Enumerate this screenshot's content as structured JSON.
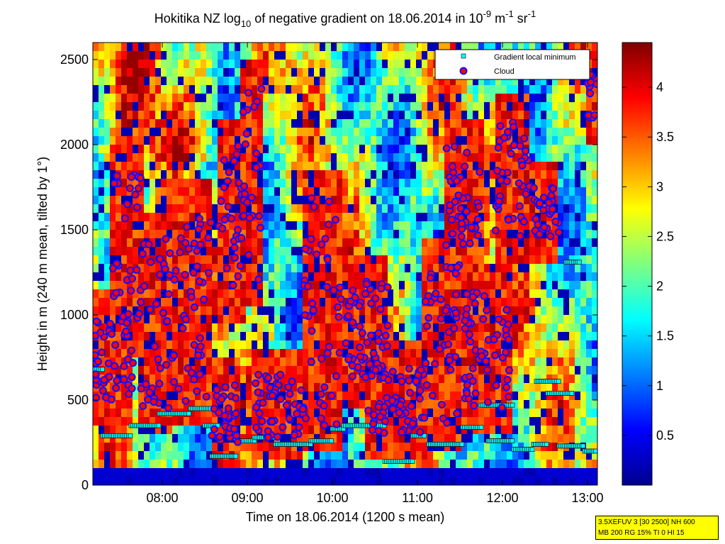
{
  "chart_data": {
    "type": "heatmap",
    "title": {
      "prefix": "Hokitika NZ log",
      "prefix_sub": "10",
      "middle": " of negative gradient on 18.06.2014 in 10",
      "unit_exp1": "-9",
      "unit_mid": " m",
      "unit_exp2": "-1",
      "unit_tail": " sr",
      "unit_exp3": "-1"
    },
    "xlabel": "Time on 18.06.2014 (1200 s mean)",
    "ylabel": "Height in m (240 m mean, tilted by 1°)",
    "xlim": [
      "07:11",
      "13:07"
    ],
    "ylim": [
      0,
      2600
    ],
    "x_ticks": [
      "08:00",
      "09:00",
      "10:00",
      "11:00",
      "12:00",
      "13:00"
    ],
    "y_ticks": [
      0,
      500,
      1000,
      1500,
      2000,
      2500
    ],
    "colorbar": {
      "range": [
        0,
        4.45
      ],
      "ticks": [
        0.5,
        1,
        1.5,
        2,
        2.5,
        3,
        3.5,
        4
      ],
      "colormap": "jet"
    },
    "legend": {
      "position": "top-right",
      "entries": [
        {
          "label": "Gradient local minimum",
          "marker": "square",
          "color": "#00ffff"
        },
        {
          "label": "Cloud",
          "marker": "circle",
          "color": "#ff0000"
        }
      ]
    },
    "gradient_minimum_segments": [
      {
        "from": "07:10",
        "to": "07:18",
        "height": 680
      },
      {
        "from": "07:15",
        "to": "07:20",
        "height": 600
      },
      {
        "from": "07:18",
        "to": "07:38",
        "height": 290
      },
      {
        "from": "07:38",
        "to": "07:58",
        "height": 350
      },
      {
        "from": "07:58",
        "to": "08:20",
        "height": 420
      },
      {
        "from": "08:20",
        "to": "08:35",
        "height": 450
      },
      {
        "from": "08:30",
        "to": "08:40",
        "height": 350
      },
      {
        "from": "08:35",
        "to": "08:52",
        "height": 170
      },
      {
        "from": "08:52",
        "to": "09:05",
        "height": 260
      },
      {
        "from": "09:05",
        "to": "09:20",
        "height": 280
      },
      {
        "from": "09:20",
        "to": "09:45",
        "height": 240
      },
      {
        "from": "09:45",
        "to": "10:00",
        "height": 260
      },
      {
        "from": "10:00",
        "to": "10:08",
        "height": 330
      },
      {
        "from": "10:08",
        "to": "10:37",
        "height": 350
      },
      {
        "from": "10:37",
        "to": "10:57",
        "height": 140
      },
      {
        "from": "10:57",
        "to": "11:05",
        "height": 290
      },
      {
        "from": "11:08",
        "to": "11:32",
        "height": 240
      },
      {
        "from": "11:32",
        "to": "11:45",
        "height": 340
      },
      {
        "from": "11:45",
        "to": "12:08",
        "height": 470
      },
      {
        "from": "11:50",
        "to": "12:08",
        "height": 260
      },
      {
        "from": "12:08",
        "to": "12:22",
        "height": 210
      },
      {
        "from": "12:22",
        "to": "12:32",
        "height": 240
      },
      {
        "from": "12:24",
        "to": "12:40",
        "height": 610
      },
      {
        "from": "12:32",
        "to": "12:50",
        "height": 540
      },
      {
        "from": "12:40",
        "to": "12:58",
        "height": 230
      },
      {
        "from": "12:58",
        "to": "13:07",
        "height": 200
      },
      {
        "from": "12:45",
        "to": "12:55",
        "height": 1310
      }
    ],
    "cloud_clusters": [
      {
        "from": "07:12",
        "to": "07:40",
        "bottom": 500,
        "top": 1000
      },
      {
        "from": "07:25",
        "to": "07:45",
        "bottom": 900,
        "top": 1850
      },
      {
        "from": "07:45",
        "to": "08:05",
        "bottom": 450,
        "top": 1450
      },
      {
        "from": "08:05",
        "to": "08:35",
        "bottom": 480,
        "top": 1650
      },
      {
        "from": "08:35",
        "to": "08:55",
        "bottom": 250,
        "top": 600
      },
      {
        "from": "08:40",
        "to": "08:58",
        "bottom": 1100,
        "top": 2000
      },
      {
        "from": "08:55",
        "to": "09:10",
        "bottom": 1200,
        "top": 2350
      },
      {
        "from": "09:05",
        "to": "09:40",
        "bottom": 280,
        "top": 650
      },
      {
        "from": "09:40",
        "to": "10:05",
        "bottom": 350,
        "top": 1700
      },
      {
        "from": "10:05",
        "to": "10:40",
        "bottom": 600,
        "top": 1200
      },
      {
        "from": "10:25",
        "to": "11:05",
        "bottom": 300,
        "top": 700
      },
      {
        "from": "11:05",
        "to": "11:30",
        "bottom": 350,
        "top": 1300
      },
      {
        "from": "11:20",
        "to": "11:45",
        "bottom": 1400,
        "top": 2000
      },
      {
        "from": "11:30",
        "to": "12:05",
        "bottom": 450,
        "top": 1150
      },
      {
        "from": "11:55",
        "to": "12:20",
        "bottom": 1450,
        "top": 2150
      },
      {
        "from": "12:20",
        "to": "12:40",
        "bottom": 1450,
        "top": 1750
      },
      {
        "from": "13:00",
        "to": "13:07",
        "bottom": 2150,
        "top": 2450
      }
    ]
  },
  "info_box": {
    "line1": "3.5XEFUV 3 [30 2500] NH 600",
    "line2": "MB 200 RG 15% TI 0 HI 15"
  }
}
